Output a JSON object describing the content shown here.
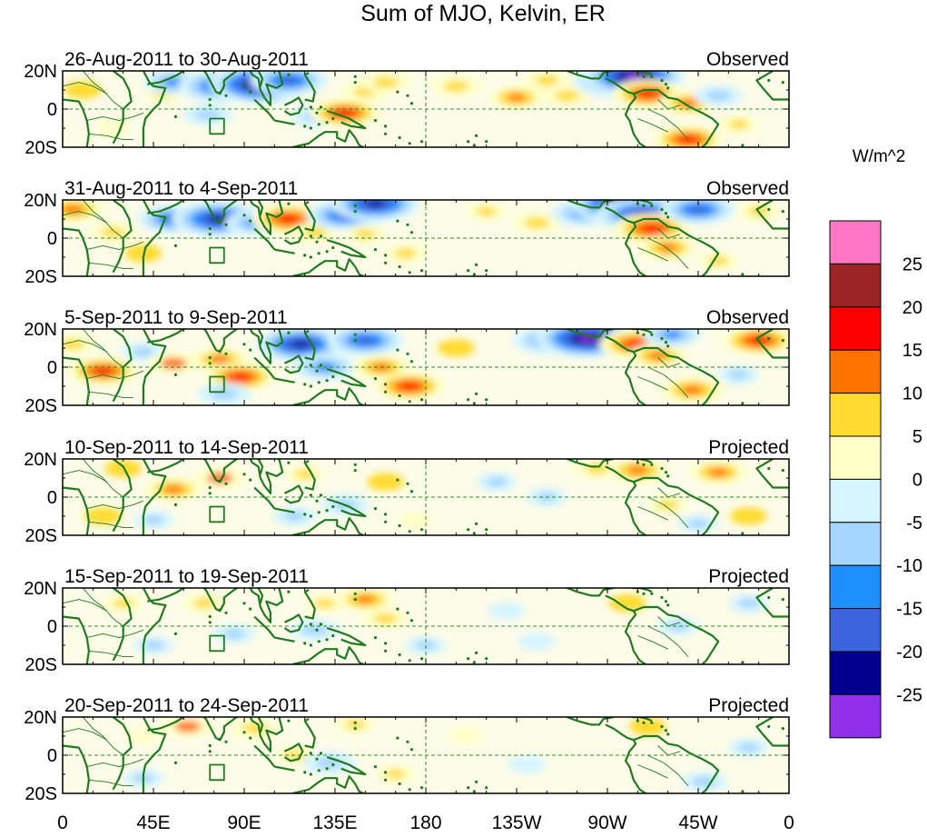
{
  "chart_data": {
    "type": "heatmap",
    "title": "Sum of MJO, Kelvin, ER",
    "units": "W/m^2",
    "x_tick_labels": [
      "0",
      "45E",
      "90E",
      "135E",
      "180",
      "135W",
      "90W",
      "45W",
      "0"
    ],
    "x_range_deg_east": [
      0,
      360
    ],
    "y_tick_labels": [
      "20N",
      "0",
      "20S"
    ],
    "y_range_deg": [
      -20,
      20
    ],
    "colorbar": {
      "levels": [
        -25,
        -20,
        -15,
        -10,
        -5,
        0,
        5,
        10,
        15,
        20,
        25
      ],
      "tick_labels": [
        "25",
        "20",
        "15",
        "10",
        "5",
        "0",
        "-5",
        "-10",
        "-15",
        "-20",
        "-25"
      ],
      "colors": [
        "#ff77c4",
        "#9b2525",
        "#ff0000",
        "#ff7400",
        "#ffdb30",
        "#ffffc8",
        "#d6f5ff",
        "#a6d6ff",
        "#1e90ff",
        "#3c64dc",
        "#00008c",
        "#9130eb"
      ]
    },
    "panels": [
      {
        "period": "26-Aug-2011 to 30-Aug-2011",
        "status": "Observed",
        "anomalies": [
          {
            "lon": 10,
            "lat": 10,
            "value": 5
          },
          {
            "lon": 25,
            "lat": -10,
            "value": 4
          },
          {
            "lon": 50,
            "lat": 8,
            "value": 6
          },
          {
            "lon": 72,
            "lat": -3,
            "value": -9
          },
          {
            "lon": 55,
            "lat": 14,
            "value": -13
          },
          {
            "lon": 78,
            "lat": 12,
            "value": -20
          },
          {
            "lon": 98,
            "lat": 13,
            "value": -26
          },
          {
            "lon": 112,
            "lat": 15,
            "value": -18
          },
          {
            "lon": 125,
            "lat": -4,
            "value": -9
          },
          {
            "lon": 140,
            "lat": -2,
            "value": 16
          },
          {
            "lon": 150,
            "lat": 9,
            "value": 8
          },
          {
            "lon": 160,
            "lat": 14,
            "value": 9
          },
          {
            "lon": 195,
            "lat": 12,
            "value": 9
          },
          {
            "lon": 225,
            "lat": 6,
            "value": 11
          },
          {
            "lon": 240,
            "lat": 15,
            "value": 8
          },
          {
            "lon": 250,
            "lat": 7,
            "value": 9
          },
          {
            "lon": 275,
            "lat": 15,
            "value": -22
          },
          {
            "lon": 283,
            "lat": 17,
            "value": -26
          },
          {
            "lon": 290,
            "lat": 8,
            "value": 16
          },
          {
            "lon": 310,
            "lat": 3,
            "value": 12
          },
          {
            "lon": 325,
            "lat": 7,
            "value": -9
          },
          {
            "lon": 310,
            "lat": -16,
            "value": 16
          },
          {
            "lon": 335,
            "lat": -8,
            "value": 6
          }
        ]
      },
      {
        "period": "31-Aug-2011 to 4-Sep-2011",
        "status": "Observed",
        "anomalies": [
          {
            "lon": 5,
            "lat": 15,
            "value": 14
          },
          {
            "lon": 25,
            "lat": 3,
            "value": 8
          },
          {
            "lon": 40,
            "lat": -8,
            "value": 5
          },
          {
            "lon": 55,
            "lat": 10,
            "value": -16
          },
          {
            "lon": 77,
            "lat": 10,
            "value": -23
          },
          {
            "lon": 95,
            "lat": 8,
            "value": -12
          },
          {
            "lon": 112,
            "lat": 10,
            "value": 17
          },
          {
            "lon": 125,
            "lat": 3,
            "value": 8
          },
          {
            "lon": 140,
            "lat": 12,
            "value": -18
          },
          {
            "lon": 150,
            "lat": 2,
            "value": 6
          },
          {
            "lon": 155,
            "lat": 18,
            "value": -22
          },
          {
            "lon": 170,
            "lat": -8,
            "value": 7
          },
          {
            "lon": 210,
            "lat": 14,
            "value": 6
          },
          {
            "lon": 235,
            "lat": 8,
            "value": 9
          },
          {
            "lon": 258,
            "lat": 13,
            "value": -14
          },
          {
            "lon": 278,
            "lat": 18,
            "value": -27
          },
          {
            "lon": 288,
            "lat": 12,
            "value": -24
          },
          {
            "lon": 292,
            "lat": 5,
            "value": 18
          },
          {
            "lon": 300,
            "lat": -5,
            "value": 12
          },
          {
            "lon": 315,
            "lat": 15,
            "value": -17
          },
          {
            "lon": 345,
            "lat": 14,
            "value": 7
          },
          {
            "lon": 325,
            "lat": -12,
            "value": 6
          }
        ]
      },
      {
        "period": "5-Sep-2011 to 9-Sep-2011",
        "status": "Observed",
        "anomalies": [
          {
            "lon": 5,
            "lat": 12,
            "value": 8
          },
          {
            "lon": 20,
            "lat": -2,
            "value": 16
          },
          {
            "lon": 40,
            "lat": 8,
            "value": -7
          },
          {
            "lon": 55,
            "lat": 2,
            "value": 10
          },
          {
            "lon": 78,
            "lat": 4,
            "value": 12
          },
          {
            "lon": 88,
            "lat": -5,
            "value": 16
          },
          {
            "lon": 80,
            "lat": -14,
            "value": -10
          },
          {
            "lon": 118,
            "lat": 12,
            "value": -22
          },
          {
            "lon": 130,
            "lat": 0,
            "value": -14
          },
          {
            "lon": 150,
            "lat": 14,
            "value": -18
          },
          {
            "lon": 158,
            "lat": 0,
            "value": 12
          },
          {
            "lon": 172,
            "lat": -10,
            "value": 16
          },
          {
            "lon": 195,
            "lat": 10,
            "value": 5
          },
          {
            "lon": 240,
            "lat": 14,
            "value": -15
          },
          {
            "lon": 260,
            "lat": 15,
            "value": -26
          },
          {
            "lon": 285,
            "lat": 12,
            "value": 18
          },
          {
            "lon": 295,
            "lat": 6,
            "value": 12
          },
          {
            "lon": 302,
            "lat": 17,
            "value": -12
          },
          {
            "lon": 312,
            "lat": -12,
            "value": 14
          },
          {
            "lon": 345,
            "lat": 14,
            "value": 17
          },
          {
            "lon": 335,
            "lat": -4,
            "value": -6
          }
        ]
      },
      {
        "period": "10-Sep-2011 to 14-Sep-2011",
        "status": "Projected",
        "anomalies": [
          {
            "lon": 30,
            "lat": 15,
            "value": 5
          },
          {
            "lon": 20,
            "lat": -10,
            "value": 5
          },
          {
            "lon": 55,
            "lat": 4,
            "value": 12
          },
          {
            "lon": 78,
            "lat": 10,
            "value": 10
          },
          {
            "lon": 45,
            "lat": -12,
            "value": -6
          },
          {
            "lon": 120,
            "lat": 12,
            "value": 6
          },
          {
            "lon": 115,
            "lat": -10,
            "value": -7
          },
          {
            "lon": 140,
            "lat": -4,
            "value": -9
          },
          {
            "lon": 160,
            "lat": 8,
            "value": 5
          },
          {
            "lon": 175,
            "lat": -12,
            "value": 4
          },
          {
            "lon": 215,
            "lat": 8,
            "value": -6
          },
          {
            "lon": 240,
            "lat": 0,
            "value": -6
          },
          {
            "lon": 265,
            "lat": 15,
            "value": 8
          },
          {
            "lon": 285,
            "lat": 14,
            "value": 13
          },
          {
            "lon": 300,
            "lat": -4,
            "value": 6
          },
          {
            "lon": 315,
            "lat": -14,
            "value": -6
          },
          {
            "lon": 325,
            "lat": 13,
            "value": 12
          },
          {
            "lon": 340,
            "lat": -10,
            "value": 5
          }
        ]
      },
      {
        "period": "15-Sep-2011 to 19-Sep-2011",
        "status": "Projected",
        "anomalies": [
          {
            "lon": 30,
            "lat": 12,
            "value": 6
          },
          {
            "lon": 45,
            "lat": -10,
            "value": -6
          },
          {
            "lon": 70,
            "lat": 12,
            "value": 7
          },
          {
            "lon": 85,
            "lat": -4,
            "value": -7
          },
          {
            "lon": 125,
            "lat": -2,
            "value": -9
          },
          {
            "lon": 130,
            "lat": 12,
            "value": 6
          },
          {
            "lon": 150,
            "lat": 14,
            "value": 12
          },
          {
            "lon": 160,
            "lat": 4,
            "value": 8
          },
          {
            "lon": 180,
            "lat": -10,
            "value": -6
          },
          {
            "lon": 220,
            "lat": 8,
            "value": -5
          },
          {
            "lon": 235,
            "lat": -8,
            "value": -5
          },
          {
            "lon": 280,
            "lat": 12,
            "value": 5
          },
          {
            "lon": 305,
            "lat": 0,
            "value": -6
          },
          {
            "lon": 340,
            "lat": 12,
            "value": -6
          }
        ]
      },
      {
        "period": "20-Sep-2011 to 24-Sep-2011",
        "status": "Projected",
        "anomalies": [
          {
            "lon": 40,
            "lat": 10,
            "value": 4
          },
          {
            "lon": 40,
            "lat": -12,
            "value": -6
          },
          {
            "lon": 62,
            "lat": 15,
            "value": 10
          },
          {
            "lon": 95,
            "lat": 14,
            "value": 8
          },
          {
            "lon": 115,
            "lat": 0,
            "value": 6
          },
          {
            "lon": 132,
            "lat": -4,
            "value": -10
          },
          {
            "lon": 145,
            "lat": 16,
            "value": 6
          },
          {
            "lon": 165,
            "lat": -10,
            "value": 6
          },
          {
            "lon": 200,
            "lat": 10,
            "value": 4
          },
          {
            "lon": 230,
            "lat": -5,
            "value": -5
          },
          {
            "lon": 290,
            "lat": 15,
            "value": 5
          },
          {
            "lon": 318,
            "lat": -14,
            "value": -8
          },
          {
            "lon": 340,
            "lat": 4,
            "value": -6
          }
        ]
      }
    ]
  }
}
